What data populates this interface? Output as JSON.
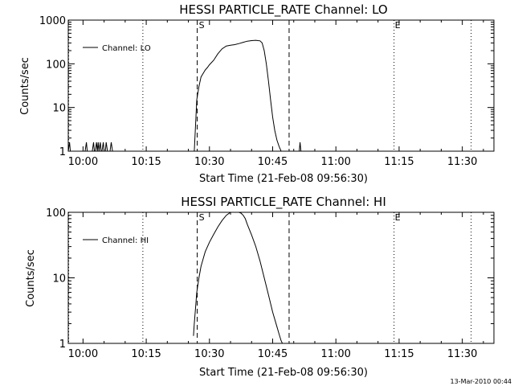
{
  "footer": "13-Mar-2010 00:44",
  "chart_data": [
    {
      "type": "line",
      "title": "HESSI PARTICLE_RATE Channel: LO",
      "xlabel": "Start Time (21-Feb-08 09:56:30)",
      "ylabel": "Counts/sec",
      "yscale": "log",
      "ylim": [
        1,
        1000
      ],
      "xlim_minutes_of_day": [
        596.5,
        697.5
      ],
      "x_ticks": [
        {
          "label": "10:00",
          "min": 600
        },
        {
          "label": "10:15",
          "min": 615
        },
        {
          "label": "10:30",
          "min": 630
        },
        {
          "label": "10:45",
          "min": 645
        },
        {
          "label": "11:00",
          "min": 660
        },
        {
          "label": "11:15",
          "min": 675
        },
        {
          "label": "11:30",
          "min": 690
        }
      ],
      "y_ticks": [
        {
          "label": "1",
          "v": 1
        },
        {
          "label": "10",
          "v": 10
        },
        {
          "label": "100",
          "v": 100
        },
        {
          "label": "1000",
          "v": 1000
        }
      ],
      "legend": "Channel: LO",
      "legend_position": "top-left",
      "markers": {
        "S": {
          "label": "S",
          "min": 627.1,
          "style": "dashed"
        },
        "E": {
          "label": "E",
          "min": 673.8,
          "style": "dotted"
        },
        "dotted": [
          596.6,
          614.2,
          673.8,
          692.1
        ],
        "dashed": [
          627.1,
          648.9
        ]
      },
      "series": [
        {
          "x": [
            596.5,
            596.8,
            597.0,
            597.2,
            597.5,
            600.5,
            600.8,
            601.0,
            601.2,
            601.5,
            602.2,
            602.5,
            602.7,
            602.9,
            603.2,
            603.4,
            603.6,
            603.8,
            604.1,
            604.3,
            604.5,
            604.8,
            605.0,
            605.3,
            605.5,
            605.8,
            606.1,
            606.4,
            606.7,
            607.0,
            607.3,
            607.6,
            607.8,
            626.4,
            626.7,
            627.0,
            627.5,
            628.0,
            628.5,
            629.0,
            629.5,
            630.0,
            631.0,
            632.0,
            633.0,
            634.0,
            635.0,
            636.0,
            637.0,
            638.0,
            639.0,
            640.0,
            641.0,
            641.5,
            642.0,
            642.5,
            643.0,
            643.5,
            644.0,
            644.5,
            645.0,
            645.5,
            646.0,
            646.5,
            647.0,
            647.5,
            648.0,
            648.5,
            649.0,
            651.3,
            651.5,
            651.7,
            651.9,
            652.1
          ],
          "values": [
            1,
            1.6,
            1,
            1,
            1,
            1,
            1.6,
            1,
            1,
            1,
            1,
            1.6,
            1,
            1,
            1.6,
            1,
            1.6,
            1,
            1.6,
            1,
            1,
            1.6,
            1,
            1,
            1.6,
            1,
            1,
            1,
            1.6,
            1,
            1,
            1,
            1,
            1,
            4,
            15,
            30,
            50,
            60,
            72,
            82,
            95,
            120,
            170,
            220,
            255,
            265,
            275,
            290,
            310,
            330,
            340,
            345,
            340,
            335,
            300,
            200,
            100,
            40,
            15,
            6,
            3,
            1.8,
            1.3,
            1,
            1,
            1,
            1,
            1,
            1,
            1.6,
            1,
            1,
            1
          ]
        }
      ]
    },
    {
      "type": "line",
      "title": "HESSI PARTICLE_RATE Channel: HI",
      "xlabel": "Start Time (21-Feb-08 09:56:30)",
      "ylabel": "Counts/sec",
      "yscale": "log",
      "ylim": [
        1,
        100
      ],
      "xlim_minutes_of_day": [
        596.5,
        697.5
      ],
      "x_ticks": [
        {
          "label": "10:00",
          "min": 600
        },
        {
          "label": "10:15",
          "min": 615
        },
        {
          "label": "10:30",
          "min": 630
        },
        {
          "label": "10:45",
          "min": 645
        },
        {
          "label": "11:00",
          "min": 660
        },
        {
          "label": "11:15",
          "min": 675
        },
        {
          "label": "11:30",
          "min": 690
        }
      ],
      "y_ticks": [
        {
          "label": "1",
          "v": 1
        },
        {
          "label": "10",
          "v": 10
        },
        {
          "label": "100",
          "v": 100
        }
      ],
      "legend": "Channel: HI",
      "legend_position": "top-left",
      "markers": {
        "S": {
          "label": "S",
          "min": 627.1,
          "style": "dashed"
        },
        "E": {
          "label": "E",
          "min": 673.8,
          "style": "dotted"
        },
        "dotted": [
          596.6,
          614.2,
          673.8,
          692.1
        ],
        "dashed": [
          627.1,
          648.9
        ]
      },
      "series": [
        {
          "x": [
            626.2,
            626.4,
            626.7,
            627.0,
            627.5,
            628.0,
            629.0,
            630.0,
            631.0,
            632.0,
            633.0,
            634.0,
            635.0,
            636.0,
            636.5,
            637.0,
            637.5,
            638.0,
            638.5,
            639.0,
            640.0,
            641.0,
            642.0,
            643.0,
            644.0,
            645.0,
            646.0,
            646.5,
            647.0,
            647.3
          ],
          "values": [
            1.3,
            2,
            3.5,
            6,
            10,
            15,
            25,
            35,
            46,
            60,
            75,
            90,
            100,
            104,
            104,
            102,
            97,
            90,
            80,
            65,
            45,
            30,
            18,
            10,
            5.5,
            3,
            1.8,
            1.4,
            1.1,
            1
          ]
        }
      ]
    }
  ]
}
